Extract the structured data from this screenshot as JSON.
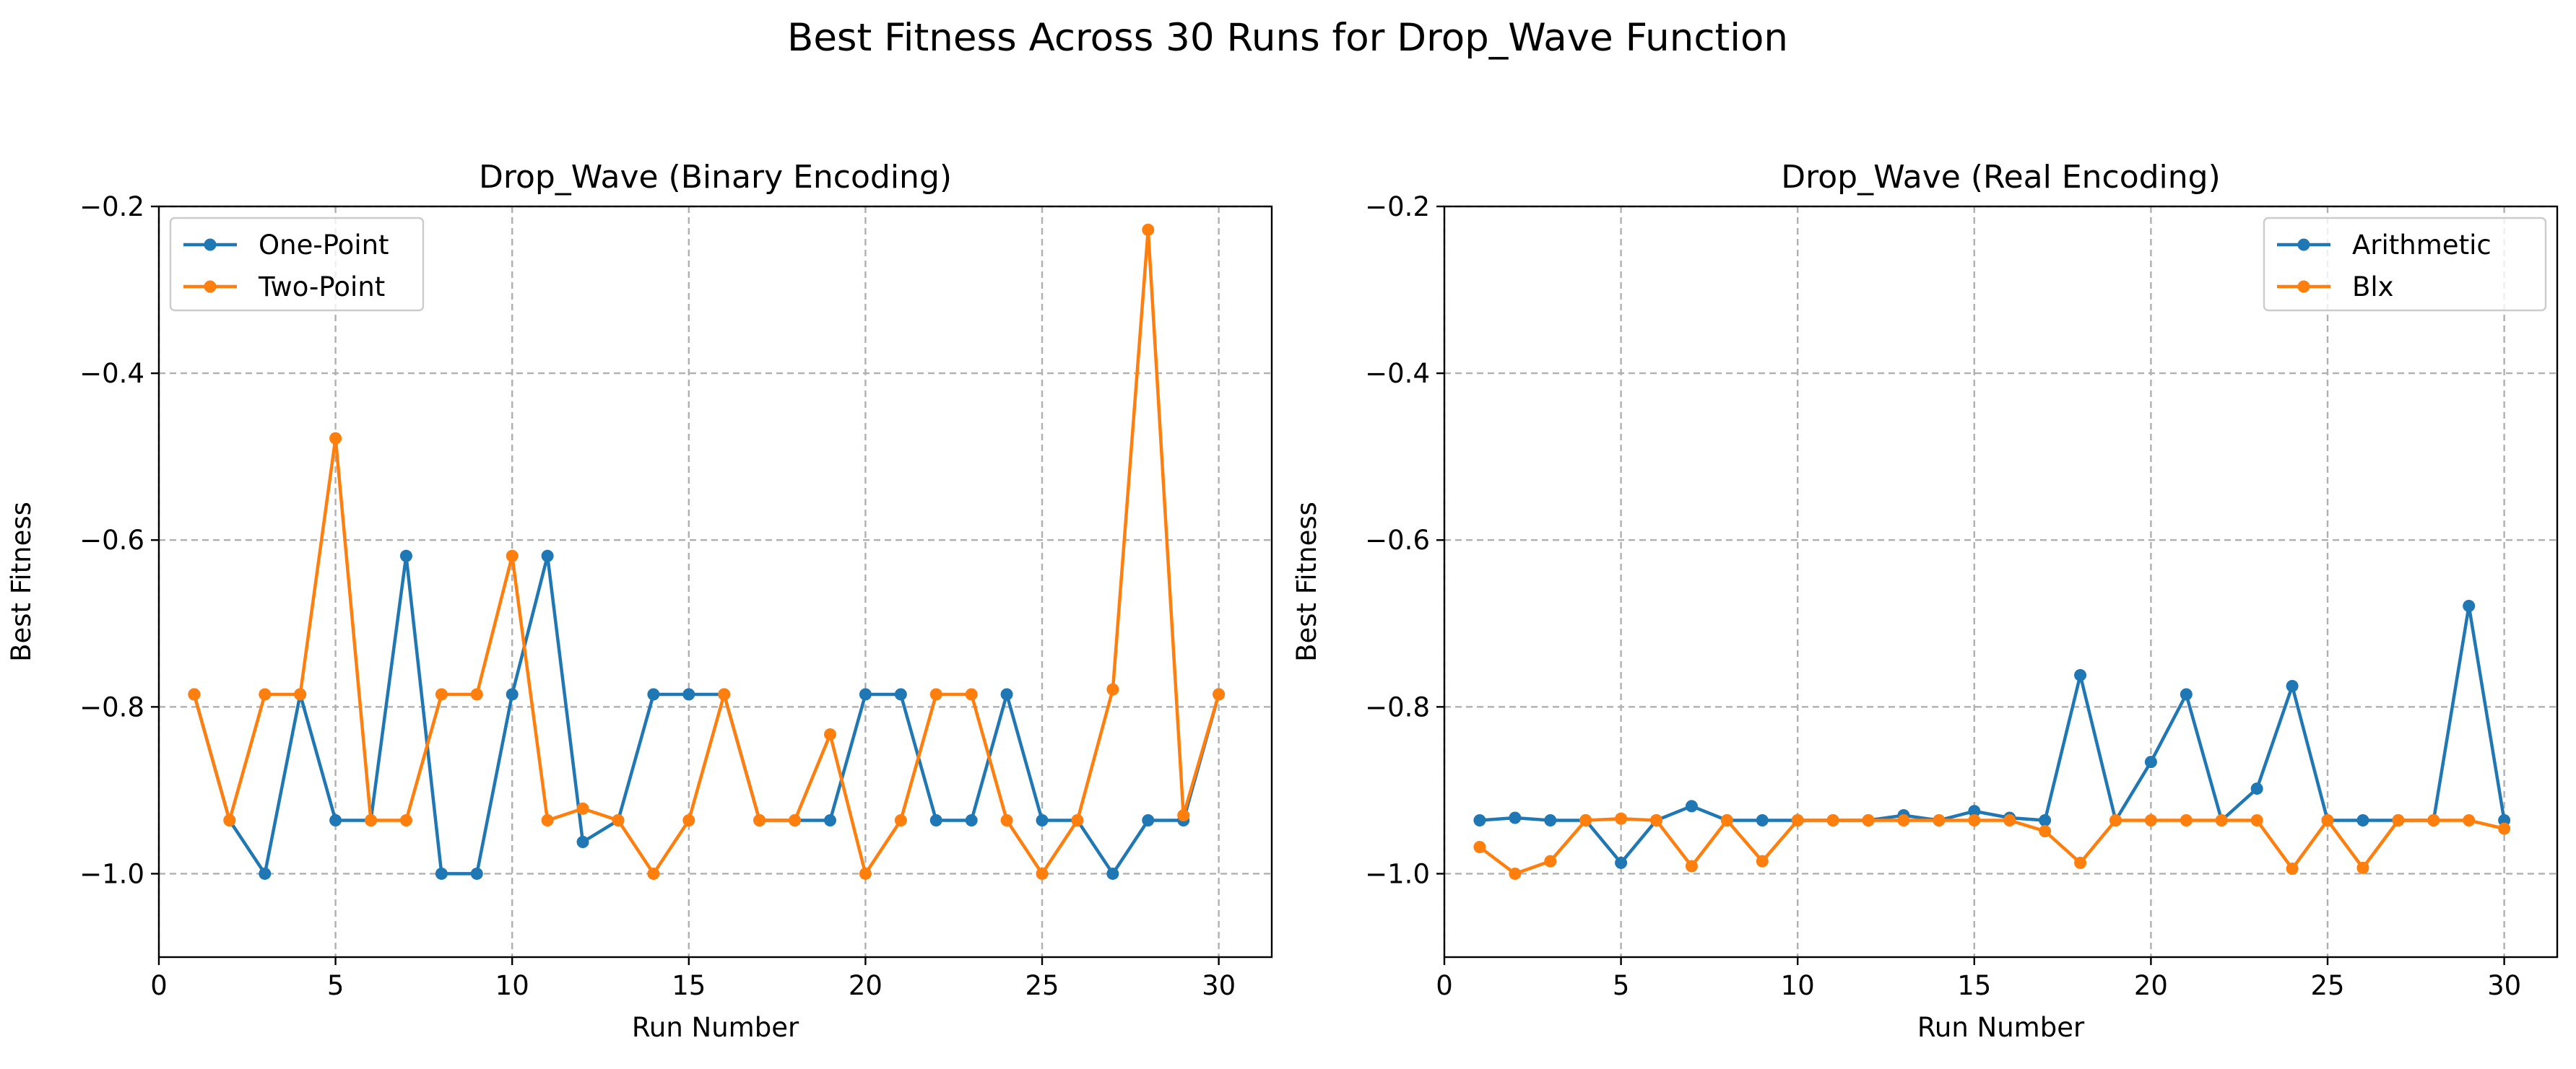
{
  "figure_title": "Best Fitness Across 30 Runs for Drop_Wave Function",
  "chart_data": [
    {
      "type": "line",
      "title": "Drop_Wave (Binary Encoding)",
      "xlabel": "Run Number",
      "ylabel": "Best Fitness",
      "xlim": [
        0,
        31.5
      ],
      "ylim": [
        -1.1,
        -0.2
      ],
      "xticks": [
        "0",
        "5",
        "10",
        "15",
        "20",
        "25",
        "30"
      ],
      "yticks": [
        "−1.0",
        "−0.8",
        "−0.6",
        "−0.4",
        "−0.2"
      ],
      "grid": true,
      "legend_position": "top-left",
      "x": [
        1,
        2,
        3,
        4,
        5,
        6,
        7,
        8,
        9,
        10,
        11,
        12,
        13,
        14,
        15,
        16,
        17,
        18,
        19,
        20,
        21,
        22,
        23,
        24,
        25,
        26,
        27,
        28,
        29,
        30
      ],
      "series": [
        {
          "name": "One-Point",
          "color": "#1f77b4",
          "values": [
            -0.785,
            -0.936,
            -1.0,
            -0.785,
            -0.936,
            -0.936,
            -0.619,
            -1.0,
            -1.0,
            -0.785,
            -0.619,
            -0.962,
            -0.936,
            -0.785,
            -0.785,
            -0.785,
            -0.936,
            -0.936,
            -0.936,
            -0.785,
            -0.785,
            -0.936,
            -0.936,
            -0.785,
            -0.936,
            -0.936,
            -1.0,
            -0.936,
            -0.936,
            -0.785
          ]
        },
        {
          "name": "Two-Point",
          "color": "#ff7f0e",
          "values": [
            -0.785,
            -0.936,
            -0.785,
            -0.785,
            -0.478,
            -0.936,
            -0.936,
            -0.785,
            -0.785,
            -0.619,
            -0.936,
            -0.922,
            -0.936,
            -1.0,
            -0.936,
            -0.785,
            -0.936,
            -0.936,
            -0.833,
            -1.0,
            -0.936,
            -0.785,
            -0.785,
            -0.936,
            -1.0,
            -0.936,
            -0.779,
            -0.228,
            -0.93,
            -0.785
          ]
        }
      ]
    },
    {
      "type": "line",
      "title": "Drop_Wave (Real Encoding)",
      "xlabel": "Run Number",
      "ylabel": "Best Fitness",
      "xlim": [
        0,
        31.5
      ],
      "ylim": [
        -1.1,
        -0.2
      ],
      "xticks": [
        "0",
        "5",
        "10",
        "15",
        "20",
        "25",
        "30"
      ],
      "yticks": [
        "−1.0",
        "−0.8",
        "−0.6",
        "−0.4",
        "−0.2"
      ],
      "grid": true,
      "legend_position": "top-right",
      "x": [
        1,
        2,
        3,
        4,
        5,
        6,
        7,
        8,
        9,
        10,
        11,
        12,
        13,
        14,
        15,
        16,
        17,
        18,
        19,
        20,
        21,
        22,
        23,
        24,
        25,
        26,
        27,
        28,
        29,
        30
      ],
      "series": [
        {
          "name": "Arithmetic",
          "color": "#1f77b4",
          "values": [
            -0.936,
            -0.933,
            -0.936,
            -0.936,
            -0.987,
            -0.936,
            -0.919,
            -0.936,
            -0.936,
            -0.936,
            -0.936,
            -0.936,
            -0.93,
            -0.936,
            -0.925,
            -0.933,
            -0.936,
            -0.762,
            -0.936,
            -0.866,
            -0.785,
            -0.936,
            -0.898,
            -0.775,
            -0.936,
            -0.936,
            -0.936,
            -0.936,
            -0.679,
            -0.936
          ]
        },
        {
          "name": "Blx",
          "color": "#ff7f0e",
          "values": [
            -0.968,
            -1.0,
            -0.985,
            -0.936,
            -0.934,
            -0.936,
            -0.991,
            -0.936,
            -0.985,
            -0.936,
            -0.936,
            -0.936,
            -0.936,
            -0.936,
            -0.936,
            -0.936,
            -0.949,
            -0.987,
            -0.936,
            -0.936,
            -0.936,
            -0.936,
            -0.936,
            -0.994,
            -0.936,
            -0.993,
            -0.936,
            -0.936,
            -0.936,
            -0.946
          ]
        }
      ]
    }
  ]
}
